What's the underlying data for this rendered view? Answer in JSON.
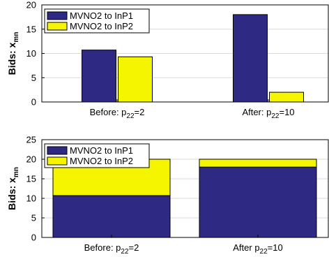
{
  "chart_data": [
    {
      "type": "bar",
      "stacked": false,
      "ylabel": "Bids: x",
      "ylabel_subscript": "mn",
      "ylim": [
        0,
        20
      ],
      "yticks": [
        0,
        5,
        10,
        15,
        20
      ],
      "grid": true,
      "legend_position": "top-left",
      "categories": [
        {
          "text": "Before: p",
          "sub": "22",
          "after": "=2"
        },
        {
          "text": "After: p",
          "sub": "22",
          "after": "=10"
        }
      ],
      "series": [
        {
          "name": "MVNO2 to InP1",
          "color": "#2e2a84",
          "values": [
            10.7,
            18
          ]
        },
        {
          "name": "MVNO2 to InP2",
          "color": "#f5f500",
          "values": [
            9.3,
            2
          ]
        }
      ]
    },
    {
      "type": "bar",
      "stacked": true,
      "ylabel": "Bids: x",
      "ylabel_subscript": "mn",
      "ylim": [
        0,
        25
      ],
      "yticks": [
        0,
        5,
        10,
        15,
        20,
        25
      ],
      "grid": true,
      "legend_position": "top-left",
      "categories": [
        {
          "text": "Before: p",
          "sub": "22",
          "after": "=2"
        },
        {
          "text": "After p",
          "sub": "22",
          "after": "=10"
        }
      ],
      "series": [
        {
          "name": "MVNO2 to InP1",
          "color": "#2e2a84",
          "values": [
            10.7,
            18
          ]
        },
        {
          "name": "MVNO2 to InP2",
          "color": "#f5f500",
          "values": [
            9.3,
            2
          ]
        }
      ]
    }
  ]
}
